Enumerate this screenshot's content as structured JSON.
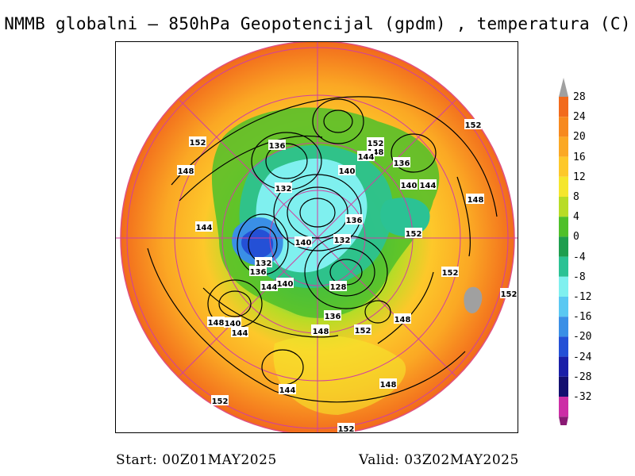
{
  "title": "NMMB globalni – 850hPa Geopotencijal (gpdm) , temperatura (C)",
  "footer": {
    "start": "Start: 00Z01MAY2025",
    "valid": "Valid: 03Z02MAY2025"
  },
  "colorbar": {
    "labels": [
      "28",
      "24",
      "20",
      "16",
      "12",
      "8",
      "4",
      "0",
      "-4",
      "-8",
      "-12",
      "-16",
      "-20",
      "-24",
      "-28",
      "-32"
    ],
    "colors": [
      "#f26a1c",
      "#f7891e",
      "#fba824",
      "#fdc82a",
      "#f5e62c",
      "#b8dc26",
      "#4fc02a",
      "#1e9e4e",
      "#2bc294",
      "#7ff0ef",
      "#5ac8f2",
      "#3a8fe6",
      "#2450d6",
      "#1a1fa8",
      "#130f70",
      "#cc2ea6",
      "#8a1a74"
    ],
    "top_arrow_color": "#a0a0a0"
  },
  "contour_labels": [
    "152",
    "148",
    "136",
    "152",
    "148",
    "144",
    "136",
    "140",
    "144",
    "132",
    "140",
    "148",
    "144",
    "136",
    "152",
    "140",
    "132",
    "136",
    "132",
    "144",
    "140",
    "128",
    "148",
    "136",
    "148",
    "152",
    "144",
    "132",
    "140",
    "148",
    "144",
    "148",
    "152",
    "152",
    "152",
    "148",
    "152",
    "152"
  ]
}
